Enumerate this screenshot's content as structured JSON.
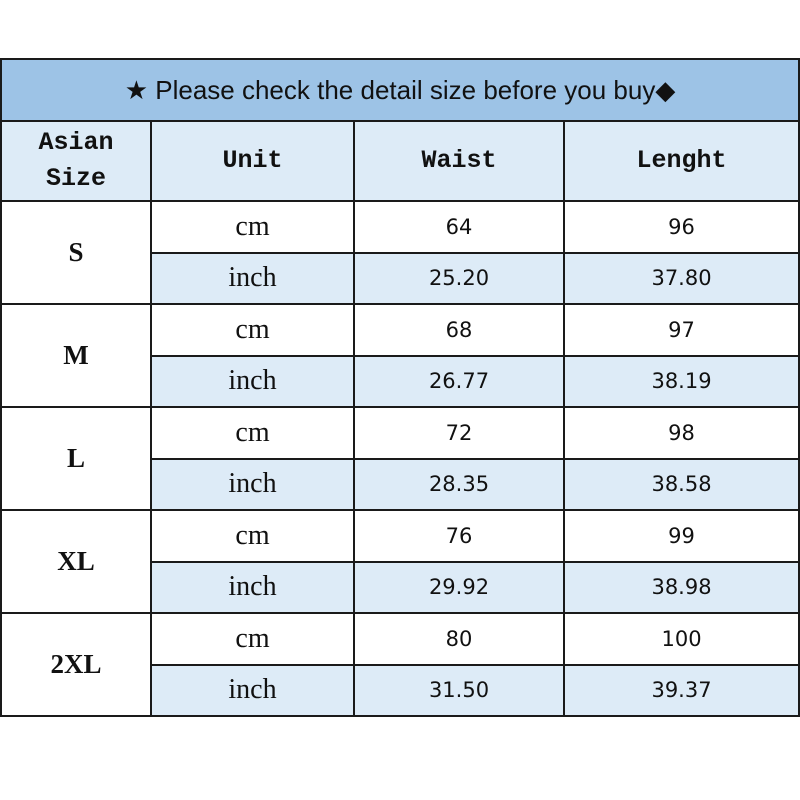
{
  "title": "★ Please check the detail size before you buy◆",
  "headers": {
    "size_line1": "Asian",
    "size_line2": "Size",
    "unit": "Unit",
    "waist": "Waist",
    "length": "Lenght"
  },
  "colors": {
    "title_bg": "#9dc3e6",
    "shaded_bg": "#ddebf7",
    "border": "#1a1a1a"
  },
  "rows": [
    {
      "size": "S",
      "cm": {
        "unit": "cm",
        "waist": "64",
        "length": "96"
      },
      "inch": {
        "unit": "inch",
        "waist": "25.20",
        "length": "37.80"
      }
    },
    {
      "size": "M",
      "cm": {
        "unit": "cm",
        "waist": "68",
        "length": "97"
      },
      "inch": {
        "unit": "inch",
        "waist": "26.77",
        "length": "38.19"
      }
    },
    {
      "size": "L",
      "cm": {
        "unit": "cm",
        "waist": "72",
        "length": "98"
      },
      "inch": {
        "unit": "inch",
        "waist": "28.35",
        "length": "38.58"
      }
    },
    {
      "size": "XL",
      "cm": {
        "unit": "cm",
        "waist": "76",
        "length": "99"
      },
      "inch": {
        "unit": "inch",
        "waist": "29.92",
        "length": "38.98"
      }
    },
    {
      "size": "2XL",
      "cm": {
        "unit": "cm",
        "waist": "80",
        "length": "100"
      },
      "inch": {
        "unit": "inch",
        "waist": "31.50",
        "length": "39.37"
      }
    }
  ]
}
